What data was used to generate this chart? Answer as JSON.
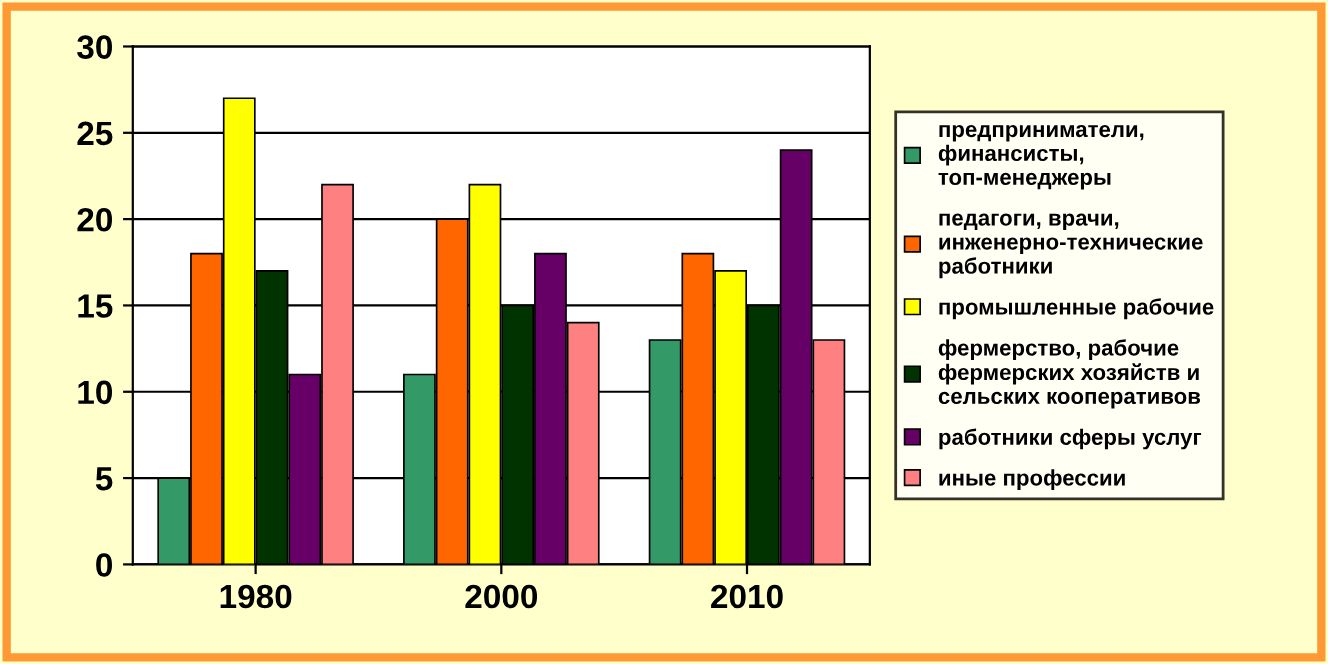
{
  "chart_data": {
    "type": "bar",
    "categories": [
      "1980",
      "2000",
      "2010"
    ],
    "series": [
      {
        "name": "предприниматели, финансисты, топ-менеджеры",
        "color": "#339966",
        "values": [
          5,
          11,
          13
        ]
      },
      {
        "name": "педагоги, врачи, инженерно-технические работники",
        "color": "#ff6600",
        "values": [
          18,
          20,
          18
        ]
      },
      {
        "name": "промышленные рабочие",
        "color": "#ffff00",
        "values": [
          27,
          22,
          17
        ]
      },
      {
        "name": "фермерство, рабочие фермерских хозяйств и сельских кооперативов",
        "color": "#003300",
        "values": [
          17,
          15,
          15
        ]
      },
      {
        "name": "работники сферы услуг",
        "color": "#660066",
        "values": [
          11,
          18,
          24
        ]
      },
      {
        "name": "иные профессии",
        "color": "#ff8080",
        "values": [
          22,
          14,
          13
        ]
      }
    ],
    "ylim": [
      0,
      30
    ],
    "yticks": [
      0,
      5,
      10,
      15,
      20,
      25,
      30
    ],
    "grid": "y",
    "legend": "right"
  }
}
